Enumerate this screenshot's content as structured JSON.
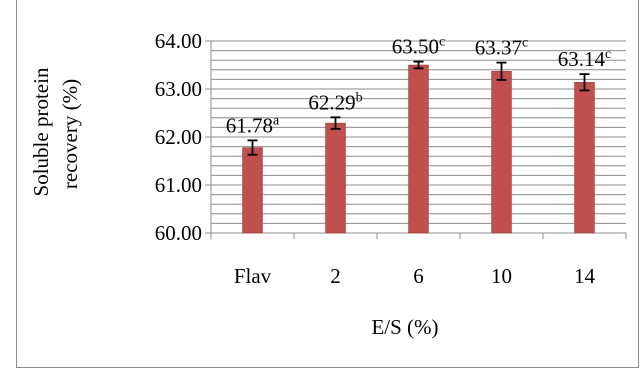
{
  "chart_data": {
    "type": "bar",
    "categories": [
      "Flav",
      "2",
      "6",
      "10",
      "14"
    ],
    "values": [
      61.78,
      62.29,
      63.5,
      63.37,
      63.14
    ],
    "error": [
      0.15,
      0.12,
      0.07,
      0.18,
      0.17
    ],
    "data_labels": [
      "61.78",
      "62.29",
      "63.50",
      "63.37",
      "63.14"
    ],
    "superscripts": [
      "a",
      "b",
      "c",
      "c",
      "c"
    ],
    "yticks": [
      "60.00",
      "61.00",
      "62.00",
      "63.00",
      "64.00"
    ],
    "ylim": [
      60,
      64
    ],
    "minor_step": 0.2,
    "xlabel": "E/S (%)",
    "ylabel_line1": "Soluble protein",
    "ylabel_line2": "recovery (%)",
    "grid": true,
    "bar_color": "#c0504d",
    "bar_edge_color": "#a03c3a",
    "grid_color": "#8c8c8c"
  }
}
